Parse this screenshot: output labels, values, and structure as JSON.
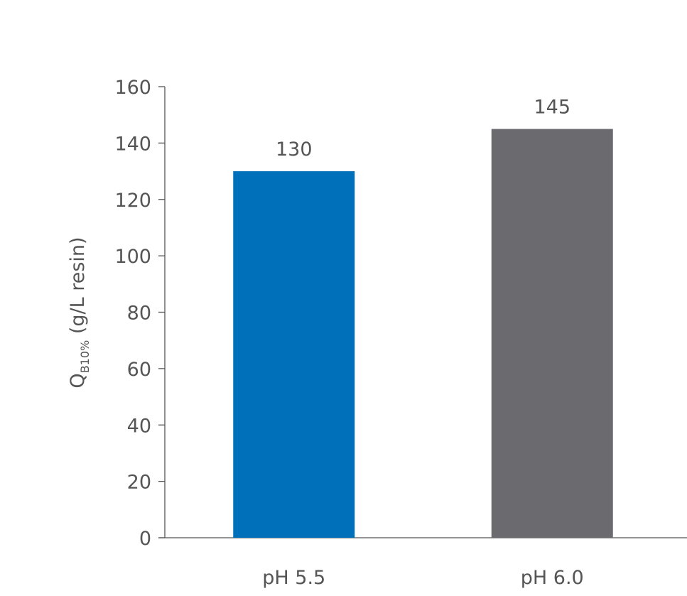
{
  "chart_data": {
    "type": "bar",
    "categories": [
      "pH 5.5",
      "pH 6.0"
    ],
    "values": [
      130,
      145
    ],
    "data_labels": [
      "130",
      "145"
    ],
    "colors": [
      "#0070BA",
      "#6B6B6F"
    ],
    "ylabel": {
      "main": "Q",
      "subscript": "B10%",
      "rest": " (g/L resin)"
    },
    "xlabel": "",
    "title": "",
    "ylim": [
      0,
      160
    ],
    "yticks": [
      0,
      20,
      40,
      60,
      80,
      100,
      120,
      140,
      160
    ],
    "grid": false,
    "legend": "none"
  }
}
